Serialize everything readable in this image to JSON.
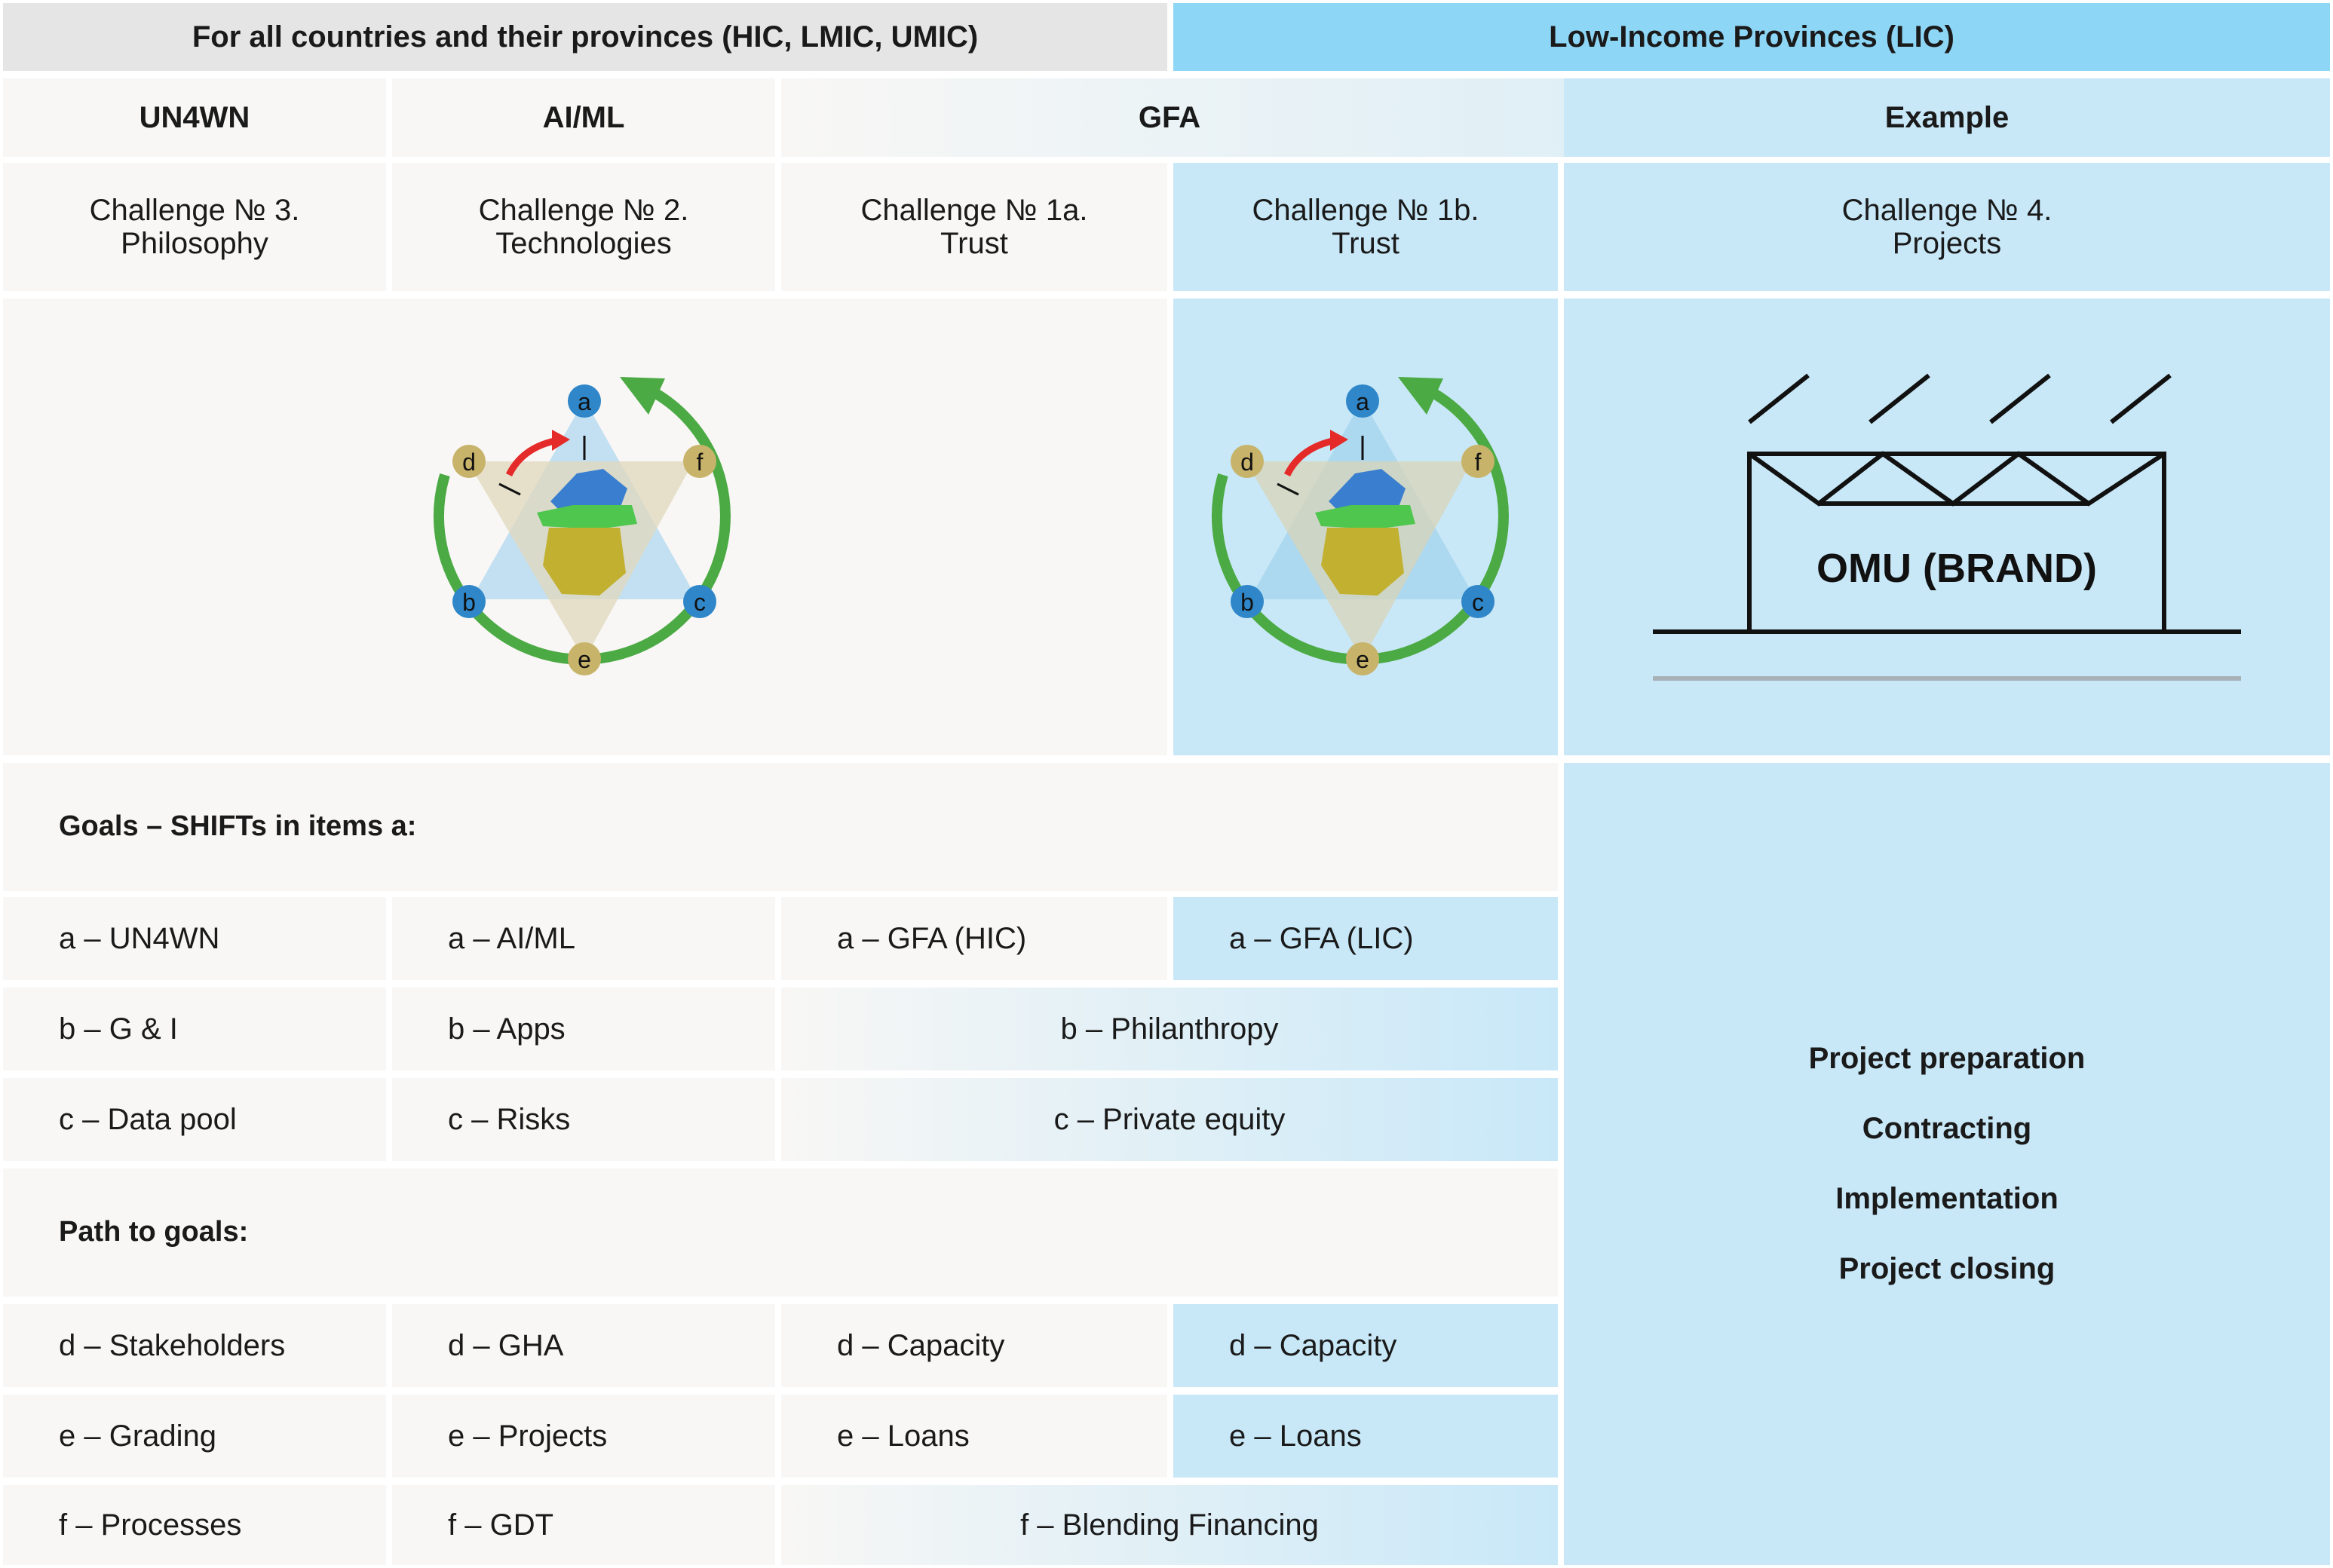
{
  "headers": {
    "all_countries": "For all countries and their provinces (HIC, LMIC, UMIC)",
    "low_income": "Low-Income Provinces (LIC)"
  },
  "columns": {
    "un4wn": "UN4WN",
    "aiml": "AI/ML",
    "gfa": "GFA",
    "example": "Example"
  },
  "challenges": [
    {
      "line1": "Challenge № 3.",
      "line2": "Philosophy"
    },
    {
      "line1": "Challenge № 2.",
      "line2": "Technologies"
    },
    {
      "line1": "Challenge № 1a.",
      "line2": "Trust"
    },
    {
      "line1": "Challenge № 1b.",
      "line2": "Trust"
    },
    {
      "line1": "Challenge № 4.",
      "line2": "Projects"
    }
  ],
  "diagram_nodes": {
    "a": "a",
    "b": "b",
    "c": "c",
    "d": "d",
    "e": "e",
    "f": "f"
  },
  "brand_label": "OMU (BRAND)",
  "goals_heading": "Goals – SHIFTs in items a:",
  "path_heading": "Path to goals:",
  "rows": {
    "a": [
      "a – UN4WN",
      "a – AI/ML",
      "a – GFA (HIC)",
      "a – GFA (LIC)"
    ],
    "b": [
      "b – G & I",
      "b – Apps",
      "b – Philanthropy"
    ],
    "c": [
      "c – Data pool",
      "c – Risks",
      "c – Private equity"
    ],
    "d": [
      "d – Stakeholders",
      "d – GHA",
      "d – Capacity",
      "d – Capacity"
    ],
    "e": [
      "e – Grading",
      "e – Projects",
      "e – Loans",
      "e – Loans"
    ],
    "f": [
      "f – Processes",
      "f – GDT",
      "f – Blending Financing"
    ]
  },
  "example_steps": [
    "Project preparation",
    "Contracting",
    "Implementation",
    "Project closing"
  ],
  "colors": {
    "gray_cell": "#f8f7f5",
    "blue_cell": "#c8e8f8",
    "blue_header": "#8ed6f6",
    "gray_header": "#e5e5e5",
    "green_arrow": "#4caa44",
    "red_arrow": "#e52a2a",
    "node_blue": "#2f86c8",
    "node_tan": "#c8b36a"
  }
}
